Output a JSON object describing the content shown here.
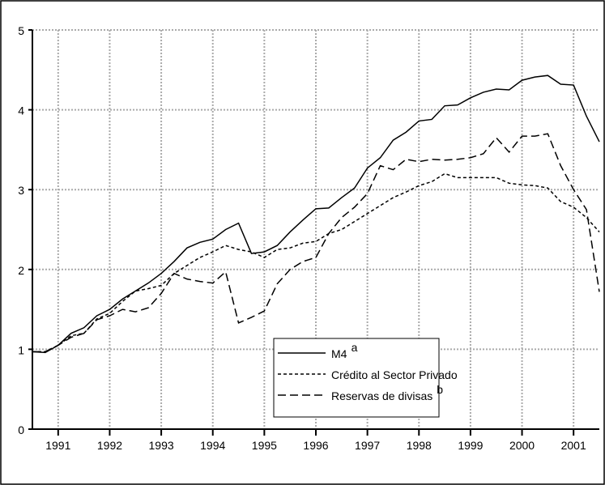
{
  "chart_data": {
    "type": "line",
    "x": [
      1990.5,
      1990.75,
      1991,
      1991.25,
      1991.5,
      1991.75,
      1992,
      1992.25,
      1992.5,
      1992.75,
      1993,
      1993.25,
      1993.5,
      1993.75,
      1994,
      1994.25,
      1994.5,
      1994.75,
      1995,
      1995.25,
      1995.5,
      1995.75,
      1996,
      1996.25,
      1996.5,
      1996.75,
      1997,
      1997.25,
      1997.5,
      1997.75,
      1998,
      1998.25,
      1998.5,
      1998.75,
      1999,
      1999.25,
      1999.5,
      1999.75,
      2000,
      2000.25,
      2000.5,
      2000.75,
      2001,
      2001.25,
      2001.5
    ],
    "series": [
      {
        "name": "M4",
        "name_sup": "a",
        "color": "#000000",
        "dash": "none",
        "values": [
          0.97,
          0.96,
          1.05,
          1.2,
          1.27,
          1.42,
          1.5,
          1.63,
          1.73,
          1.83,
          1.95,
          2.1,
          2.27,
          2.34,
          2.38,
          2.5,
          2.58,
          2.2,
          2.22,
          2.3,
          2.47,
          2.62,
          2.76,
          2.77,
          2.9,
          3.02,
          3.27,
          3.4,
          3.62,
          3.72,
          3.86,
          3.88,
          4.05,
          4.06,
          4.15,
          4.22,
          4.26,
          4.25,
          4.37,
          4.41,
          4.43,
          4.32,
          4.31,
          3.92,
          3.6
        ]
      },
      {
        "name": "Crédito al Sector Privado",
        "color": "#000000",
        "dash": "4,3",
        "values": [
          0.97,
          0.97,
          1.05,
          1.17,
          1.2,
          1.38,
          1.45,
          1.6,
          1.73,
          1.76,
          1.8,
          1.95,
          2.05,
          2.15,
          2.22,
          2.3,
          2.25,
          2.22,
          2.15,
          2.25,
          2.27,
          2.33,
          2.35,
          2.45,
          2.5,
          2.6,
          2.7,
          2.8,
          2.9,
          2.97,
          3.05,
          3.1,
          3.2,
          3.15,
          3.15,
          3.15,
          3.15,
          3.08,
          3.06,
          3.05,
          3.02,
          2.85,
          2.78,
          2.65,
          2.47
        ]
      },
      {
        "name": "Reservas de divisas",
        "name_sup": "b",
        "color": "#000000",
        "dash": "10,5",
        "values": [
          0.97,
          0.97,
          1.05,
          1.15,
          1.2,
          1.37,
          1.42,
          1.5,
          1.47,
          1.52,
          1.7,
          1.95,
          1.88,
          1.85,
          1.83,
          1.97,
          1.33,
          1.4,
          1.48,
          1.82,
          2.0,
          2.1,
          2.15,
          2.45,
          2.65,
          2.78,
          2.95,
          3.3,
          3.25,
          3.38,
          3.35,
          3.38,
          3.37,
          3.38,
          3.4,
          3.45,
          3.65,
          3.47,
          3.67,
          3.67,
          3.7,
          3.3,
          3.0,
          2.75,
          1.72
        ]
      }
    ],
    "xlim": [
      1990.5,
      2001.5
    ],
    "xticks": [
      1991,
      1992,
      1993,
      1994,
      1995,
      1996,
      1997,
      1998,
      1999,
      2000,
      2001
    ],
    "ylim": [
      0,
      5
    ],
    "yticks": [
      0,
      1,
      2,
      3,
      4,
      5
    ],
    "grid": true
  }
}
